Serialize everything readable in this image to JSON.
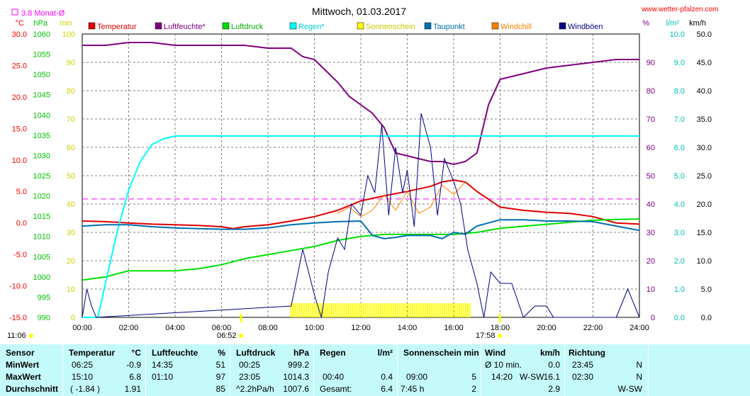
{
  "header": {
    "title": "Mittwoch, 01.03.2017",
    "site": "www.wetter-pfalzen.com",
    "monthly_avg_label": "3.8 Monat-Ø"
  },
  "axes": {
    "left": [
      {
        "unit": "°C",
        "color": "#ff0000",
        "ticks": [
          "30.0",
          "25.0",
          "20.0",
          "15.0",
          "10.0",
          "5.0",
          "0.0",
          "-5.0",
          "-10.0",
          "-15.0"
        ]
      },
      {
        "unit": "hPa",
        "color": "#00c000",
        "ticks": [
          "1060",
          "1055",
          "1050",
          "1045",
          "1040",
          "1035",
          "1030",
          "1025",
          "1020",
          "1015",
          "1010",
          "1005",
          "1000",
          "995",
          "990"
        ]
      },
      {
        "unit": "min",
        "color": "#d0d000",
        "ticks": [
          "100",
          "90",
          "80",
          "70",
          "60",
          "50",
          "40",
          "30",
          "20",
          "10",
          "0"
        ]
      }
    ],
    "right": [
      {
        "unit": "%",
        "color": "#800080",
        "ticks": [
          "90",
          "80",
          "70",
          "60",
          "50",
          "40",
          "30",
          "20",
          "10",
          "0"
        ]
      },
      {
        "unit": "l/m²",
        "color": "#00c0c0",
        "ticks": [
          "10.0",
          "9.0",
          "8.0",
          "7.0",
          "6.0",
          "5.0",
          "4.0",
          "3.0",
          "2.0",
          "1.0",
          "0.0"
        ]
      },
      {
        "unit": "km/h",
        "color": "#000000",
        "ticks": [
          "50.0",
          "45.0",
          "40.0",
          "35.0",
          "30.0",
          "25.0",
          "20.0",
          "15.0",
          "10.0",
          "5.0",
          "0.0"
        ]
      }
    ],
    "x_ticks": [
      "00:00",
      "02:00",
      "04:00",
      "06:00",
      "08:00",
      "10:00",
      "12:00",
      "14:00",
      "16:00",
      "18:00",
      "20:00",
      "22:00",
      "24:00"
    ],
    "sun_markers": {
      "moon_rise": "11:06",
      "sunrise": "06:52",
      "sunset": "17:58"
    }
  },
  "legend": [
    {
      "name": "Temperatur",
      "color": "#e00000"
    },
    {
      "name": "Luftfeuchte*",
      "color": "#800080"
    },
    {
      "name": "Luftdruck",
      "color": "#00e000"
    },
    {
      "name": "Regen*",
      "color": "#00ffff"
    },
    {
      "name": "Sonnenschein",
      "color": "#ffff00"
    },
    {
      "name": "Taupunkt",
      "color": "#0070b0"
    },
    {
      "name": "Windchill",
      "color": "#ff8000"
    },
    {
      "name": "Windböen",
      "color": "#000080"
    }
  ],
  "chart_data": {
    "type": "line",
    "title": "Mittwoch, 01.03.2017",
    "x_unit": "hour",
    "xlim": [
      0,
      24
    ],
    "monthly_avg_temperature": 3.8,
    "series": [
      {
        "name": "Temperatur",
        "axis": "°C",
        "ylim": [
          -15,
          30
        ],
        "x": [
          0,
          1,
          2,
          3,
          4,
          5,
          6,
          6.5,
          7,
          8,
          9,
          10,
          11,
          12,
          13,
          14,
          15,
          15.5,
          16,
          16.5,
          17,
          18,
          19,
          20,
          21,
          22,
          23,
          24
        ],
        "y": [
          0.3,
          0.2,
          0.0,
          -0.2,
          -0.3,
          -0.4,
          -0.6,
          -0.9,
          -0.6,
          -0.3,
          0.3,
          1.0,
          2.0,
          3.5,
          4.3,
          5.0,
          5.8,
          6.5,
          6.8,
          6.5,
          5.0,
          2.5,
          2.0,
          1.7,
          1.5,
          1.0,
          0.0,
          -0.2
        ]
      },
      {
        "name": "Luftfeuchte*",
        "axis": "%",
        "ylim": [
          0,
          100
        ],
        "x": [
          0,
          1,
          2,
          3,
          4,
          5,
          6,
          7,
          8,
          9,
          9.5,
          10,
          10.5,
          11,
          11.5,
          12,
          12.5,
          13,
          13.5,
          14,
          14.5,
          15,
          15.5,
          16,
          16.5,
          17,
          17.5,
          18,
          19,
          20,
          21,
          22,
          23,
          24
        ],
        "y": [
          96,
          96,
          97,
          97,
          96,
          96,
          96,
          96,
          95,
          95,
          92,
          91,
          87,
          83,
          78,
          75,
          72,
          67,
          58,
          57,
          56,
          55,
          55,
          54,
          55,
          58,
          75,
          84,
          86,
          88,
          89,
          90,
          91,
          91
        ]
      },
      {
        "name": "Luftdruck",
        "axis": "hPa",
        "ylim": [
          990,
          1060
        ],
        "x": [
          0,
          1,
          2,
          3,
          4,
          5,
          6,
          7,
          8,
          9,
          10,
          11,
          12,
          13,
          14,
          15,
          16,
          17,
          18,
          19,
          20,
          21,
          22,
          23,
          24
        ],
        "y": [
          999.2,
          1000,
          1001.5,
          1001.5,
          1001.5,
          1002,
          1003,
          1004.5,
          1005.5,
          1006.5,
          1007.5,
          1009,
          1010,
          1010.5,
          1010.5,
          1010.5,
          1010.5,
          1011,
          1012,
          1012.5,
          1013,
          1013.5,
          1014,
          1014.2,
          1014.3
        ]
      },
      {
        "name": "Regen*",
        "axis": "l/m²",
        "ylim": [
          0,
          10
        ],
        "x": [
          0,
          0.3,
          0.67,
          1,
          1.5,
          2,
          2.5,
          3,
          3.5,
          4,
          24
        ],
        "y": [
          0,
          0,
          0,
          1.2,
          3.0,
          4.5,
          5.5,
          6.1,
          6.3,
          6.4,
          6.4
        ]
      },
      {
        "name": "Sonnenschein",
        "axis": "min",
        "ylim": [
          0,
          100
        ],
        "x": [
          9.0,
          16.7
        ],
        "y": [
          5,
          5
        ]
      },
      {
        "name": "Taupunkt",
        "axis": "°C",
        "ylim": [
          -15,
          30
        ],
        "x": [
          0,
          1,
          2,
          3,
          4,
          5,
          6,
          7,
          8,
          9,
          10,
          11,
          12,
          12.5,
          13,
          13.5,
          14,
          14.5,
          15,
          15.5,
          16,
          16.5,
          17,
          17.5,
          18,
          19,
          20,
          21,
          22,
          23,
          24
        ],
        "y": [
          -0.5,
          -0.3,
          -0.3,
          -0.6,
          -0.8,
          -0.9,
          -1.0,
          -1.0,
          -0.8,
          -0.3,
          0.0,
          0.2,
          0.3,
          -2.0,
          -2.5,
          -2.3,
          -2.0,
          -2.0,
          -2.0,
          -2.5,
          -1.5,
          -1.8,
          -0.5,
          0.0,
          0.5,
          0.5,
          0.3,
          0.3,
          0.2,
          -0.5,
          -1.2
        ]
      },
      {
        "name": "Windchill",
        "axis": "°C",
        "ylim": [
          -15,
          30
        ],
        "x": [
          11,
          11.5,
          12,
          12.5,
          13,
          13.5,
          14,
          14.5,
          15,
          15.5,
          16,
          16.5
        ],
        "y": [
          1.5,
          2.5,
          1.0,
          2.0,
          4.5,
          2.0,
          5.0,
          1.5,
          2.5,
          6.0,
          4.5,
          6.5
        ]
      },
      {
        "name": "Windböen",
        "axis": "km/h",
        "ylim": [
          0,
          50
        ],
        "x": [
          0,
          0.2,
          0.4,
          0.6,
          9,
          9.5,
          10,
          10.3,
          10.6,
          11,
          11.3,
          11.6,
          12,
          12.3,
          12.6,
          12.9,
          13.2,
          13.5,
          13.8,
          14,
          14.3,
          14.6,
          15,
          15.3,
          15.6,
          16,
          16.3,
          16.6,
          17,
          17.3,
          17.6,
          18,
          18.5,
          19,
          19.5,
          20,
          20.3,
          20.6,
          21,
          22,
          23,
          23.5,
          24
        ],
        "y": [
          0,
          5,
          2,
          0,
          2,
          12,
          4,
          0,
          8,
          14,
          12,
          20,
          18,
          25,
          22,
          34,
          18,
          30,
          22,
          26,
          16,
          36,
          30,
          18,
          28,
          24,
          20,
          12,
          6,
          0,
          8,
          6,
          6,
          0,
          2,
          2,
          0,
          0,
          0,
          0,
          0,
          5,
          0
        ]
      }
    ]
  },
  "stats": {
    "labels": {
      "col0_hdr": "Sensor",
      "min": "MinWert",
      "max": "MaxWert",
      "avg": "Durchschnitt"
    },
    "temp": {
      "hdr": "Temperatur",
      "unit": "°C",
      "min_time": "06:25",
      "min_val": "-0.9",
      "max_time": "15:10",
      "max_val": "6.8",
      "avg_extra": "( -1.84 )",
      "avg_val": "1.91"
    },
    "hum": {
      "hdr": "Luftfeuchte",
      "unit": "%",
      "min_time": "14:35",
      "min_val": "51",
      "max_time": "01:10",
      "max_val": "97",
      "avg_val": "85"
    },
    "press": {
      "hdr": "Luftdruck",
      "unit": "hPa",
      "min_time": "00:25",
      "min_val": "999.2",
      "max_time": "23:05",
      "max_val": "1014.3",
      "avg_extra": "^2.2hPa/h",
      "avg_val": "1007.6"
    },
    "rain": {
      "hdr": "Regen",
      "unit": "l/m²",
      "max_time": "00:40",
      "max_val": "0.4",
      "avg_extra": "Gesamt:",
      "avg_val": "6.4"
    },
    "sun": {
      "hdr": "Sonnenschein min",
      "max_time": "09:00",
      "max_val": "5",
      "avg_extra": "7:45 h",
      "avg_val": "2"
    },
    "wind": {
      "hdr": "Wind",
      "unit": "km/h",
      "min_extra": "Ø 10 min.",
      "min_val": "0.0",
      "max_time": "14:20",
      "max_dir": "W-SW",
      "max_val": "16.1",
      "avg_val": "2.9"
    },
    "dir": {
      "hdr": "Richtung",
      "min_time": "23:45",
      "min_val": "N",
      "max_time": "02:30",
      "max_val": "N",
      "avg_val": "W-SW"
    }
  }
}
